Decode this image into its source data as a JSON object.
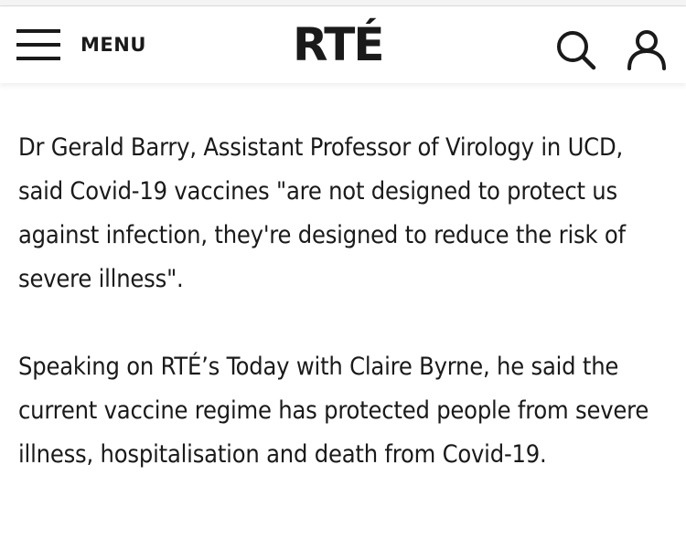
{
  "header": {
    "menu_label": "MENU",
    "logo_text": "RTÉ",
    "icons": {
      "menu": "hamburger-icon",
      "search": "search-icon",
      "account": "user-icon"
    }
  },
  "article": {
    "paragraphs": [
      "Dr Gerald Barry, Assistant Professor of Virology in UCD, said Covid-19 vaccines \"are not designed to protect us against infection, they're designed to reduce the risk of severe illness\".",
      "Speaking on RTÉ’s Today with Claire Byrne, he said the current vaccine regime has protected people from severe illness, hospitalisation and death from Covid-19."
    ]
  }
}
